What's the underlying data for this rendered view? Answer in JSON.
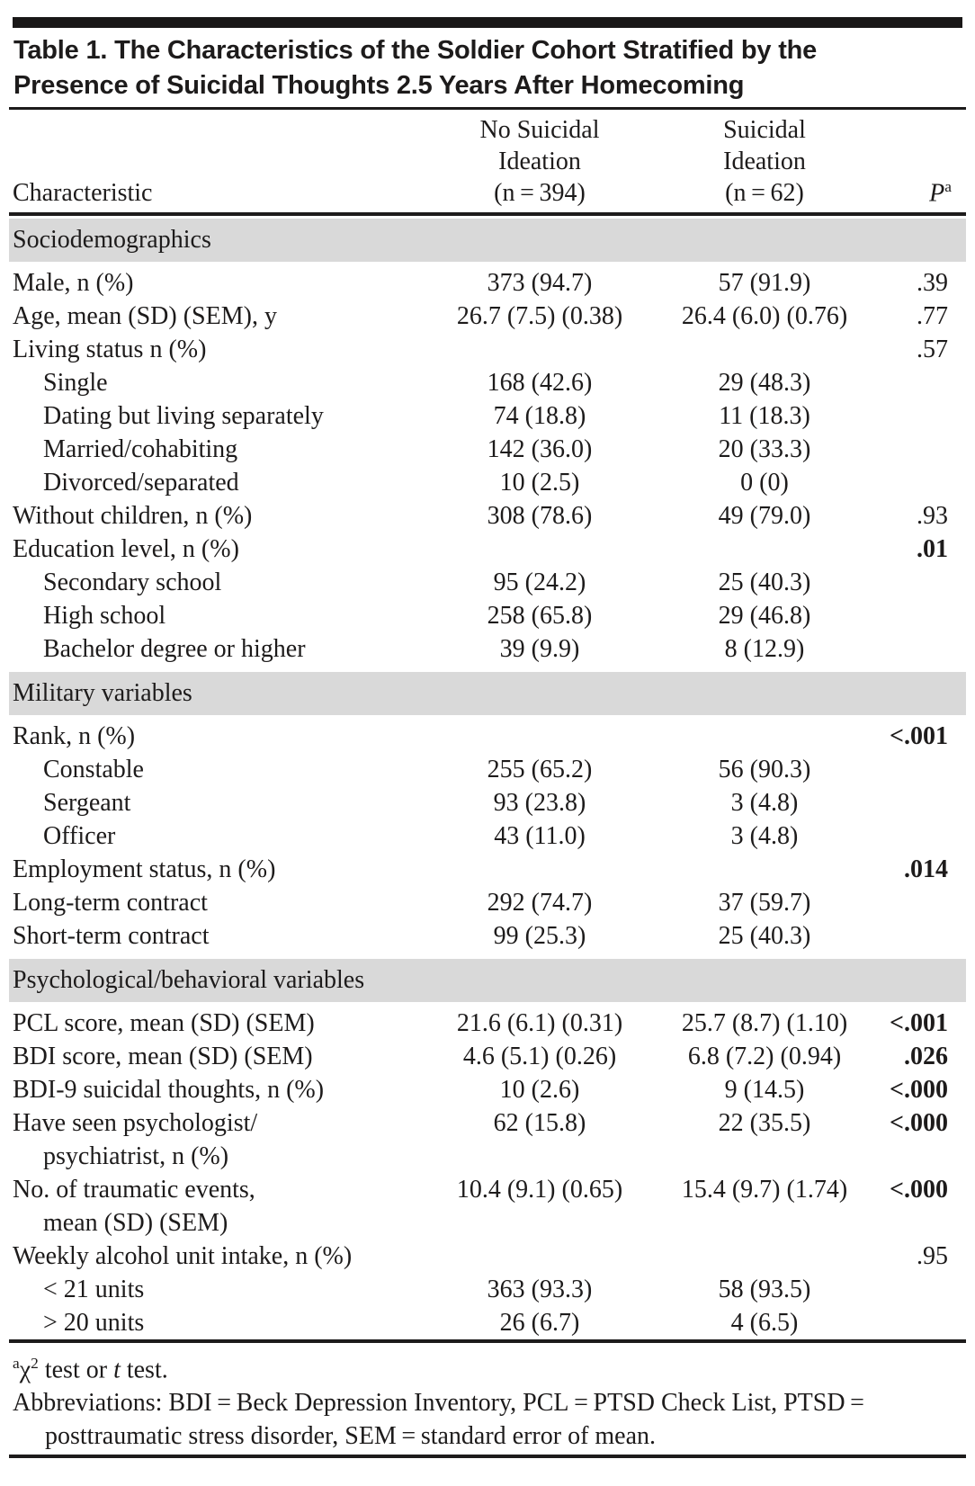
{
  "title": "Table 1. The Characteristics of the Soldier Cohort Stratified by the\nPresence of Suicidal Thoughts 2.5 Years After Homecoming",
  "header": {
    "characteristic": "Characteristic",
    "col1": "No Suicidal\nIdeation\n(n = 394)",
    "col2": "Suicidal\nIdeation\n(n = 62)",
    "p_label": "P",
    "p_sup": "a"
  },
  "table": {
    "rows": [
      {
        "kind": "section",
        "label": "Sociodemographics"
      },
      {
        "kind": "data",
        "label": "Male, n (%)",
        "indent": false,
        "v1": "373 (94.7)",
        "v2": "57 (91.9)",
        "p": ".39",
        "p_bold": false
      },
      {
        "kind": "data",
        "label": "Age, mean (SD) (SEM), y",
        "indent": false,
        "v1": "26.7 (7.5) (0.38)",
        "v2": "26.4 (6.0) (0.76)",
        "p": ".77",
        "p_bold": false
      },
      {
        "kind": "data",
        "label": "Living status n (%)",
        "indent": false,
        "v1": "",
        "v2": "",
        "p": ".57",
        "p_bold": false
      },
      {
        "kind": "data",
        "label": "Single",
        "indent": true,
        "v1": "168 (42.6)",
        "v2": "29 (48.3)",
        "p": "",
        "p_bold": false
      },
      {
        "kind": "data",
        "label": "Dating but living separately",
        "indent": true,
        "v1": "74 (18.8)",
        "v2": "11 (18.3)",
        "p": "",
        "p_bold": false
      },
      {
        "kind": "data",
        "label": "Married/cohabiting",
        "indent": true,
        "v1": "142 (36.0)",
        "v2": "20 (33.3)",
        "p": "",
        "p_bold": false
      },
      {
        "kind": "data",
        "label": "Divorced/separated",
        "indent": true,
        "v1": "10 (2.5)",
        "v2": "0 (0)",
        "p": "",
        "p_bold": false
      },
      {
        "kind": "data",
        "label": "Without children, n (%)",
        "indent": false,
        "v1": "308 (78.6)",
        "v2": "49 (79.0)",
        "p": ".93",
        "p_bold": false
      },
      {
        "kind": "data",
        "label": "Education level, n (%)",
        "indent": false,
        "v1": "",
        "v2": "",
        "p": ".01",
        "p_bold": true
      },
      {
        "kind": "data",
        "label": "Secondary school",
        "indent": true,
        "v1": "95 (24.2)",
        "v2": "25 (40.3)",
        "p": "",
        "p_bold": false
      },
      {
        "kind": "data",
        "label": "High school",
        "indent": true,
        "v1": "258 (65.8)",
        "v2": "29 (46.8)",
        "p": "",
        "p_bold": false
      },
      {
        "kind": "data",
        "label": "Bachelor degree or higher",
        "indent": true,
        "v1": "39 (9.9)",
        "v2": "8 (12.9)",
        "p": "",
        "p_bold": false
      },
      {
        "kind": "section",
        "label": "Military variables"
      },
      {
        "kind": "data",
        "label": "Rank, n (%)",
        "indent": false,
        "v1": "",
        "v2": "",
        "p": "<.001",
        "p_bold": true
      },
      {
        "kind": "data",
        "label": "Constable",
        "indent": true,
        "v1": "255 (65.2)",
        "v2": "56 (90.3)",
        "p": "",
        "p_bold": false
      },
      {
        "kind": "data",
        "label": "Sergeant",
        "indent": true,
        "v1": "93 (23.8)",
        "v2": "3 (4.8)",
        "p": "",
        "p_bold": false
      },
      {
        "kind": "data",
        "label": "Officer",
        "indent": true,
        "v1": "43 (11.0)",
        "v2": "3 (4.8)",
        "p": "",
        "p_bold": false
      },
      {
        "kind": "data",
        "label": "Employment status, n (%)",
        "indent": false,
        "v1": "",
        "v2": "",
        "p": ".014",
        "p_bold": true
      },
      {
        "kind": "data",
        "label": "Long-term contract",
        "indent": false,
        "v1": "292 (74.7)",
        "v2": "37 (59.7)",
        "p": "",
        "p_bold": false
      },
      {
        "kind": "data",
        "label": "Short-term contract",
        "indent": false,
        "v1": "99 (25.3)",
        "v2": "25 (40.3)",
        "p": "",
        "p_bold": false
      },
      {
        "kind": "section",
        "label": "Psychological/behavioral variables"
      },
      {
        "kind": "data",
        "label": "PCL score, mean (SD) (SEM)",
        "indent": false,
        "v1": "21.6 (6.1) (0.31)",
        "v2": "25.7 (8.7) (1.10)",
        "p": "<.001",
        "p_bold": true
      },
      {
        "kind": "data",
        "label": "BDI score, mean (SD) (SEM)",
        "indent": false,
        "v1": "4.6 (5.1) (0.26)",
        "v2": "6.8 (7.2) (0.94)",
        "p": ".026",
        "p_bold": true
      },
      {
        "kind": "data",
        "label": "BDI-9 suicidal thoughts, n (%)",
        "indent": false,
        "v1": "10 (2.6)",
        "v2": "9 (14.5)",
        "p": "<.000",
        "p_bold": true
      },
      {
        "kind": "data",
        "label": "Have seen psychologist/",
        "label2": "psychiatrist, n (%)",
        "indent": false,
        "v1": "62 (15.8)",
        "v2": "22 (35.5)",
        "p": "<.000",
        "p_bold": true
      },
      {
        "kind": "data",
        "label": "No. of traumatic events,",
        "label2": "mean (SD) (SEM)",
        "indent": false,
        "v1": "10.4 (9.1) (0.65)",
        "v2": "15.4 (9.7) (1.74)",
        "p": "<.000",
        "p_bold": true
      },
      {
        "kind": "data",
        "label": "Weekly alcohol unit intake, n (%)",
        "indent": false,
        "v1": "",
        "v2": "",
        "p": ".95",
        "p_bold": false
      },
      {
        "kind": "data",
        "label": "< 21 units",
        "indent": true,
        "v1": "363 (93.3)",
        "v2": "58 (93.5)",
        "p": "",
        "p_bold": false
      },
      {
        "kind": "data",
        "label": "> 20 units",
        "indent": true,
        "v1": "26 (6.7)",
        "v2": "4 (6.5)",
        "p": "",
        "p_bold": false
      }
    ]
  },
  "footnotes": {
    "fn1_sup_a": "a",
    "fn1_chi": "χ",
    "fn1_sup_2": "2",
    "fn1_mid": " test or ",
    "fn1_t": "t",
    "fn1_end": " test.",
    "abbreviations": "Abbreviations: BDI = Beck Depression Inventory, PCL = PTSD Check List, PTSD = posttraumatic stress disorder, SEM = standard error of mean."
  },
  "colors": {
    "section_band": "#d9d9d9",
    "rule": "#1d1b1b",
    "text": "#1d1b1b"
  }
}
